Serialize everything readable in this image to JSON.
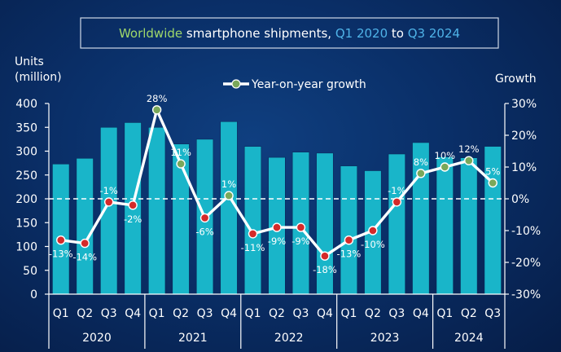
{
  "colors": {
    "bar": "#19b5c9",
    "marker_positive": "#7aa85a",
    "marker_negative": "#d42a2a",
    "title_green": "#9fd86a",
    "title_blue": "#4fb3e8",
    "line": "#ffffff"
  },
  "chart_data": {
    "type": "bar",
    "title_parts": [
      {
        "text": "Worldwide",
        "color": "#9fd86a"
      },
      {
        "text": " smartphone shipments, ",
        "color": "#ffffff"
      },
      {
        "text": "Q1 2020",
        "color": "#4fb3e8"
      },
      {
        "text": " to ",
        "color": "#ffffff"
      },
      {
        "text": "Q3 2024",
        "color": "#4fb3e8"
      }
    ],
    "y_left_label_line1": "Units",
    "y_left_label_line2": "(million)",
    "y_right_label": "Growth",
    "legend_label": "Year-on-year growth",
    "legend_position": "top-center",
    "categories": [
      "Q1",
      "Q2",
      "Q3",
      "Q4",
      "Q1",
      "Q2",
      "Q3",
      "Q4",
      "Q1",
      "Q2",
      "Q3",
      "Q4",
      "Q1",
      "Q2",
      "Q3",
      "Q4",
      "Q1",
      "Q2",
      "Q3"
    ],
    "years": [
      {
        "label": "2020",
        "from": 0,
        "to": 3
      },
      {
        "label": "2021",
        "from": 4,
        "to": 7
      },
      {
        "label": "2022",
        "from": 8,
        "to": 11
      },
      {
        "label": "2023",
        "from": 12,
        "to": 15
      },
      {
        "label": "2024",
        "from": 16,
        "to": 18
      }
    ],
    "series": [
      {
        "type": "bar",
        "values": [
          273,
          285,
          350,
          360,
          350,
          315,
          325,
          362,
          310,
          287,
          298,
          296,
          269,
          259,
          294,
          318,
          288,
          286,
          310
        ]
      },
      {
        "type": "line",
        "name": "Year-on-year growth",
        "values": [
          -13,
          -14,
          -1,
          -2,
          28,
          11,
          -6,
          1,
          -11,
          -9,
          -9,
          -18,
          -13,
          -10,
          -1,
          8,
          10,
          12,
          5
        ],
        "labels": [
          "-13%",
          "-14%",
          "-1%",
          "-2%",
          "28%",
          "11%",
          "-6%",
          "1%",
          "-11%",
          "-9%",
          "-9%",
          "-18%",
          "-13%",
          "-10%",
          "-1%",
          "8%",
          "10%",
          "12%",
          "5%"
        ]
      }
    ],
    "y_left": {
      "min": 0,
      "max": 400,
      "ticks": [
        "0",
        "50",
        "100",
        "150",
        "200",
        "250",
        "300",
        "350",
        "400"
      ]
    },
    "y_right": {
      "min": -30,
      "max": 30,
      "ticks": [
        "-30%",
        "-20%",
        "-10%",
        "0%",
        "10%",
        "20%",
        "30%"
      ]
    },
    "grid": false
  }
}
